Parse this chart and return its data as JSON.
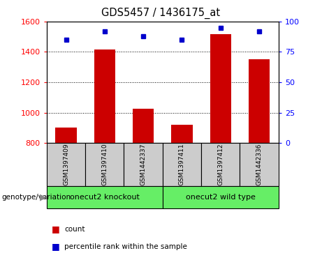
{
  "title": "GDS5457 / 1436175_at",
  "samples": [
    "GSM1397409",
    "GSM1397410",
    "GSM1442337",
    "GSM1397411",
    "GSM1397412",
    "GSM1442336"
  ],
  "counts": [
    900,
    1415,
    1025,
    920,
    1515,
    1350
  ],
  "percentile_ranks": [
    85,
    92,
    88,
    85,
    95,
    92
  ],
  "groups": [
    {
      "label": "onecut2 knockout",
      "color": "#66ee66"
    },
    {
      "label": "onecut2 wild type",
      "color": "#66ee66"
    }
  ],
  "ylim_left": [
    800,
    1600
  ],
  "ylim_right": [
    0,
    100
  ],
  "yticks_left": [
    800,
    1000,
    1200,
    1400,
    1600
  ],
  "yticks_right": [
    0,
    25,
    50,
    75,
    100
  ],
  "bar_color": "#cc0000",
  "scatter_color": "#0000cc",
  "sample_bg": "#cccccc",
  "legend_items": [
    "count",
    "percentile rank within the sample"
  ]
}
